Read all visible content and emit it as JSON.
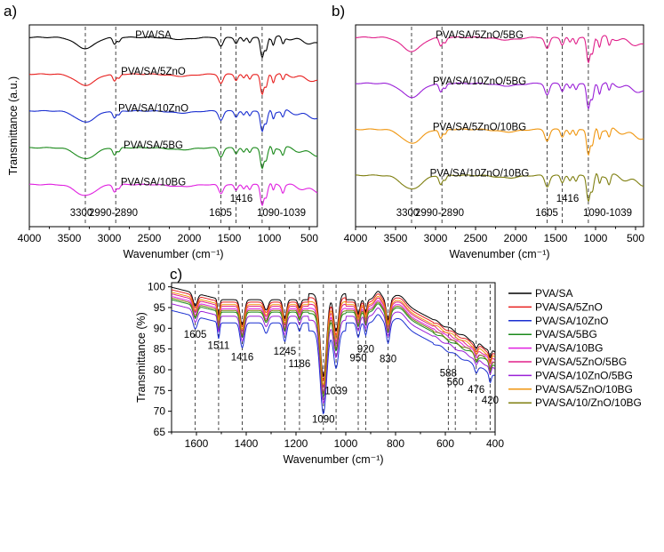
{
  "panels": {
    "a": {
      "label": "a)"
    },
    "b": {
      "label": "b)"
    },
    "c": {
      "label": "c)"
    }
  },
  "chart_data": [
    {
      "panel": "a",
      "type": "line",
      "title": "",
      "xlabel": "Wavenumber (cm⁻¹)",
      "ylabel": "Transmittance (a.u.)",
      "xlim": [
        4000,
        400
      ],
      "xticks": [
        4000,
        3500,
        3000,
        2500,
        2000,
        1500,
        1000,
        500
      ],
      "yticks": [],
      "vlines": [
        3300,
        2920,
        1605,
        1416,
        1090
      ],
      "peak_labels": [
        "3300",
        "2990-2890",
        "1605",
        "1416",
        "1090-1039"
      ],
      "series": [
        {
          "name": "PVA/SA",
          "color": "#000000",
          "offset": 4
        },
        {
          "name": "PVA/SA/5ZnO",
          "color": "#e8201f",
          "offset": 3
        },
        {
          "name": "PVA/SA/10ZnO",
          "color": "#1a2fd1",
          "offset": 2
        },
        {
          "name": "PVA/SA/5BG",
          "color": "#1b8a1b",
          "offset": 1
        },
        {
          "name": "PVA/SA/10BG",
          "color": "#e020e0",
          "offset": 0
        }
      ]
    },
    {
      "panel": "b",
      "type": "line",
      "title": "",
      "xlabel": "Wavenumber (cm⁻¹)",
      "ylabel": "",
      "xlim": [
        4000,
        400
      ],
      "xticks": [
        4000,
        3500,
        3000,
        2500,
        2000,
        1500,
        1000,
        500
      ],
      "yticks": [],
      "vlines": [
        3300,
        2920,
        1605,
        1416,
        1090
      ],
      "peak_labels": [
        "3300",
        "2990-2890",
        "1605",
        "1416",
        "1090-1039"
      ],
      "series": [
        {
          "name": "PVA/SA/5ZnO/5BG",
          "color": "#e0208a",
          "offset": 3
        },
        {
          "name": "PVA/SA/10ZnO/5BG",
          "color": "#9a20d8",
          "offset": 2
        },
        {
          "name": "PVA/SA/5ZnO/10BG",
          "color": "#f0960f",
          "offset": 1
        },
        {
          "name": "PVA/SA/10ZnO/10BG",
          "color": "#7f7f10",
          "offset": 0
        }
      ]
    },
    {
      "panel": "c",
      "type": "line",
      "title": "",
      "xlabel": "Wavenumber (cm⁻¹)",
      "ylabel": "Transmittance (%)",
      "xlim": [
        1700,
        400
      ],
      "ylim": [
        65,
        101
      ],
      "xticks": [
        1600,
        1400,
        1200,
        1000,
        800,
        600,
        400
      ],
      "yticks": [
        65,
        70,
        75,
        80,
        85,
        90,
        95,
        100
      ],
      "vlines": [
        1605,
        1511,
        1416,
        1245,
        1186,
        1090,
        1039,
        950,
        920,
        830,
        588,
        560,
        476,
        420
      ],
      "peak_labels": [
        {
          "text": "1605",
          "x": 1605,
          "y": 87.7
        },
        {
          "text": "1511",
          "x": 1511,
          "y": 85.0
        },
        {
          "text": "1416",
          "x": 1416,
          "y": 82.3
        },
        {
          "text": "1245",
          "x": 1245,
          "y": 83.6
        },
        {
          "text": "1186",
          "x": 1186,
          "y": 80.6
        },
        {
          "text": "1090",
          "x": 1090,
          "y": 67.3
        },
        {
          "text": "1039",
          "x": 1039,
          "y": 74.1
        },
        {
          "text": "950",
          "x": 950,
          "y": 82.0
        },
        {
          "text": "920",
          "x": 920,
          "y": 84.2
        },
        {
          "text": "830",
          "x": 830,
          "y": 81.8
        },
        {
          "text": "588",
          "x": 588,
          "y": 78.4
        },
        {
          "text": "560",
          "x": 560,
          "y": 76.2
        },
        {
          "text": "476",
          "x": 476,
          "y": 74.4
        },
        {
          "text": "420",
          "x": 420,
          "y": 71.9
        }
      ],
      "series": [
        {
          "name": "PVA/SA",
          "color": "#000000",
          "shift": 2.4
        },
        {
          "name": "PVA/SA/5ZnO",
          "color": "#e8201f",
          "shift": 1.8
        },
        {
          "name": "PVA/SA/10ZnO",
          "color": "#1a2fd1",
          "shift": -3.2
        },
        {
          "name": "PVA/SA/5BG",
          "color": "#1b8a1b",
          "shift": -0.6
        },
        {
          "name": "PVA/SA/10BG",
          "color": "#e020e0",
          "shift": 0.2
        },
        {
          "name": "PVA/SA/5ZnO/5BG",
          "color": "#e0208a",
          "shift": 0.8
        },
        {
          "name": "PVA/SA/10ZnO/5BG",
          "color": "#9a20d8",
          "shift": -1.6
        },
        {
          "name": "PVA/SA/5ZnO/10BG",
          "color": "#f0960f",
          "shift": 1.2
        },
        {
          "name": "PVA/SA/10/ZnO/10BG",
          "color": "#7f7f10",
          "shift": -0.2
        }
      ],
      "legend_position": "right"
    }
  ]
}
